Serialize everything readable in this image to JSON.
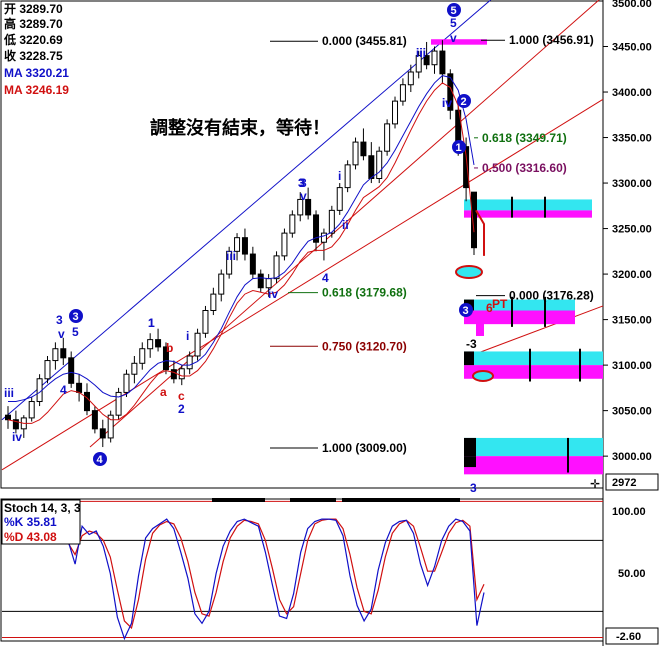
{
  "legend": {
    "open": "开 3289.70",
    "high": "高 3289.70",
    "low": "低 3220.69",
    "close": "收 3228.75",
    "ma_blue": "MA 3320.21",
    "ma_red": "MA 3246.19"
  },
  "annotation": "調整沒有結束，等待！",
  "colors": {
    "blue": "#1010c8",
    "red": "#d01010",
    "green": "#107010",
    "purple": "#7a1060",
    "cyan": "#33e6f0",
    "magenta": "#ff10ff",
    "bg": "#ffffff"
  },
  "fib_upper": [
    {
      "label": "0.000 (3455.81)",
      "value": 3455.81,
      "color": "#000000"
    },
    {
      "label": "1.000 (3456.91)",
      "value": 3456.91,
      "color": "#000000"
    },
    {
      "label": "0.618 (3349.71)",
      "value": 3349.71,
      "color": "#107010"
    },
    {
      "label": "0.500 (3316.60)",
      "value": 3316.6,
      "color": "#7a1060"
    },
    {
      "label": "0.618 (3179.68)",
      "value": 3179.68,
      "color": "#107010"
    },
    {
      "label": "0.000 (3176.28)",
      "value": 3176.28,
      "color": "#000000"
    },
    {
      "label": "0.750 (3120.70)",
      "value": 3120.7,
      "color": "#8b0000"
    },
    {
      "label": "1.000 (3009.00)",
      "value": 3009.0,
      "color": "#000000"
    }
  ],
  "price_panel": {
    "yticks": [
      {
        "label": "3450.00",
        "v": 3450
      },
      {
        "label": "3400.00",
        "v": 3400
      },
      {
        "label": "3350.00",
        "v": 3350
      },
      {
        "label": "3300.00",
        "v": 3300
      },
      {
        "label": "3250.00",
        "v": 3250
      },
      {
        "label": "3200.00",
        "v": 3200
      },
      {
        "label": "3150.00",
        "v": 3150
      },
      {
        "label": "3100.00",
        "v": 3100
      },
      {
        "label": "3050.00",
        "v": 3050
      },
      {
        "label": "3000.00",
        "v": 3000
      }
    ],
    "top_cut": "3500.00",
    "last_price": "2972"
  },
  "stoch": {
    "title": "Stoch 14, 3, 3",
    "k": "%K  35.81",
    "d": "%D  43.08",
    "yticks": [
      {
        "label": "100.00",
        "v": 100
      },
      {
        "label": "50.00",
        "v": 50
      }
    ],
    "last": "-2.60"
  },
  "wave_labels": [
    "iii",
    "iv",
    "3",
    "v",
    "5",
    "4",
    "3",
    "1",
    "b",
    "a",
    "c",
    "i",
    "2",
    "iii",
    "iv",
    "3",
    "v",
    "4",
    "i",
    "ii",
    "iii",
    "iv",
    "5",
    "v",
    "iii",
    "iv",
    "1",
    "3",
    "-3",
    "3",
    "6",
    "PT"
  ],
  "circled_labels": [
    "5",
    "2",
    "1",
    "3",
    "4",
    "3"
  ],
  "chart_data": {
    "type": "candlestick",
    "price_range": [
      2965,
      3500
    ],
    "stoch_range": [
      -5,
      115
    ],
    "ohlc": [
      [
        3045,
        3055,
        3030,
        3040
      ],
      [
        3040,
        3050,
        3025,
        3030
      ],
      [
        3030,
        3045,
        3020,
        3042
      ],
      [
        3042,
        3065,
        3038,
        3060
      ],
      [
        3060,
        3090,
        3055,
        3085
      ],
      [
        3085,
        3110,
        3080,
        3105
      ],
      [
        3105,
        3125,
        3095,
        3118
      ],
      [
        3118,
        3130,
        3100,
        3108
      ],
      [
        3108,
        3115,
        3075,
        3080
      ],
      [
        3080,
        3090,
        3060,
        3070
      ],
      [
        3070,
        3080,
        3045,
        3050
      ],
      [
        3050,
        3055,
        3025,
        3030
      ],
      [
        3030,
        3040,
        3010,
        3020
      ],
      [
        3020,
        3050,
        3015,
        3045
      ],
      [
        3045,
        3075,
        3040,
        3070
      ],
      [
        3070,
        3095,
        3065,
        3090
      ],
      [
        3090,
        3110,
        3080,
        3102
      ],
      [
        3102,
        3125,
        3095,
        3118
      ],
      [
        3118,
        3135,
        3108,
        3128
      ],
      [
        3128,
        3140,
        3115,
        3120
      ],
      [
        3120,
        3125,
        3090,
        3095
      ],
      [
        3095,
        3105,
        3080,
        3085
      ],
      [
        3085,
        3100,
        3078,
        3096
      ],
      [
        3096,
        3115,
        3090,
        3110
      ],
      [
        3110,
        3140,
        3105,
        3135
      ],
      [
        3135,
        3165,
        3130,
        3160
      ],
      [
        3160,
        3185,
        3155,
        3178
      ],
      [
        3178,
        3205,
        3170,
        3200
      ],
      [
        3200,
        3230,
        3195,
        3225
      ],
      [
        3225,
        3245,
        3215,
        3240
      ],
      [
        3240,
        3250,
        3215,
        3222
      ],
      [
        3222,
        3230,
        3195,
        3200
      ],
      [
        3200,
        3205,
        3180,
        3185
      ],
      [
        3185,
        3200,
        3175,
        3195
      ],
      [
        3195,
        3225,
        3190,
        3220
      ],
      [
        3220,
        3250,
        3215,
        3245
      ],
      [
        3245,
        3270,
        3240,
        3265
      ],
      [
        3265,
        3290,
        3258,
        3282
      ],
      [
        3282,
        3295,
        3260,
        3265
      ],
      [
        3265,
        3270,
        3225,
        3235
      ],
      [
        3235,
        3250,
        3215,
        3245
      ],
      [
        3245,
        3275,
        3240,
        3270
      ],
      [
        3270,
        3300,
        3265,
        3295
      ],
      [
        3295,
        3325,
        3290,
        3320
      ],
      [
        3320,
        3350,
        3315,
        3345
      ],
      [
        3345,
        3360,
        3325,
        3330
      ],
      [
        3330,
        3345,
        3300,
        3305
      ],
      [
        3305,
        3340,
        3300,
        3335
      ],
      [
        3335,
        3370,
        3330,
        3365
      ],
      [
        3365,
        3395,
        3360,
        3390
      ],
      [
        3390,
        3415,
        3385,
        3408
      ],
      [
        3408,
        3430,
        3400,
        3422
      ],
      [
        3422,
        3445,
        3415,
        3440
      ],
      [
        3440,
        3455,
        3425,
        3430
      ],
      [
        3430,
        3450,
        3420,
        3445
      ],
      [
        3445,
        3457,
        3410,
        3420
      ],
      [
        3420,
        3425,
        3370,
        3380
      ],
      [
        3380,
        3390,
        3330,
        3340
      ],
      [
        3340,
        3350,
        3280,
        3295
      ],
      [
        3290,
        3290,
        3221,
        3229
      ]
    ],
    "ma_blue": [
      3060,
      3060,
      3062,
      3065,
      3070,
      3078,
      3085,
      3090,
      3092,
      3090,
      3085,
      3078,
      3070,
      3066,
      3065,
      3068,
      3075,
      3085,
      3095,
      3102,
      3105,
      3104,
      3100,
      3100,
      3104,
      3112,
      3125,
      3140,
      3158,
      3175,
      3188,
      3195,
      3196,
      3195,
      3196,
      3202,
      3212,
      3225,
      3236,
      3240,
      3242,
      3246,
      3255,
      3268,
      3283,
      3298,
      3306,
      3312,
      3322,
      3336,
      3352,
      3368,
      3384,
      3398,
      3410,
      3418,
      3416,
      3402,
      3370,
      3320
    ],
    "ma_red": [
      3040,
      3038,
      3036,
      3036,
      3040,
      3048,
      3058,
      3068,
      3072,
      3070,
      3064,
      3055,
      3046,
      3040,
      3040,
      3046,
      3056,
      3068,
      3080,
      3090,
      3094,
      3092,
      3088,
      3088,
      3094,
      3104,
      3118,
      3134,
      3152,
      3168,
      3178,
      3182,
      3180,
      3178,
      3180,
      3188,
      3200,
      3214,
      3224,
      3226,
      3226,
      3230,
      3240,
      3254,
      3270,
      3284,
      3290,
      3296,
      3306,
      3322,
      3340,
      3358,
      3375,
      3390,
      3402,
      3410,
      3405,
      3385,
      3330,
      3246
    ],
    "stoch_k": [
      80,
      60,
      92,
      85,
      88,
      75,
      52,
      15,
      -3,
      10,
      50,
      82,
      90,
      94,
      98,
      90,
      70,
      48,
      18,
      10,
      20,
      52,
      75,
      88,
      96,
      98,
      95,
      92,
      70,
      42,
      16,
      14,
      35,
      70,
      90,
      96,
      98,
      98,
      97,
      84,
      50,
      25,
      12,
      22,
      55,
      78,
      92,
      96,
      97,
      86,
      60,
      42,
      58,
      80,
      92,
      98,
      96,
      88,
      8,
      36
    ],
    "stoch_d": [
      78,
      68,
      84,
      88,
      86,
      80,
      66,
      38,
      12,
      6,
      30,
      64,
      86,
      93,
      96,
      94,
      82,
      62,
      36,
      18,
      16,
      36,
      62,
      82,
      92,
      97,
      96,
      94,
      80,
      56,
      30,
      18,
      24,
      52,
      80,
      94,
      97,
      98,
      98,
      90,
      68,
      40,
      20,
      18,
      38,
      66,
      86,
      94,
      97,
      92,
      74,
      54,
      54,
      70,
      86,
      95,
      97,
      92,
      30,
      43
    ]
  }
}
